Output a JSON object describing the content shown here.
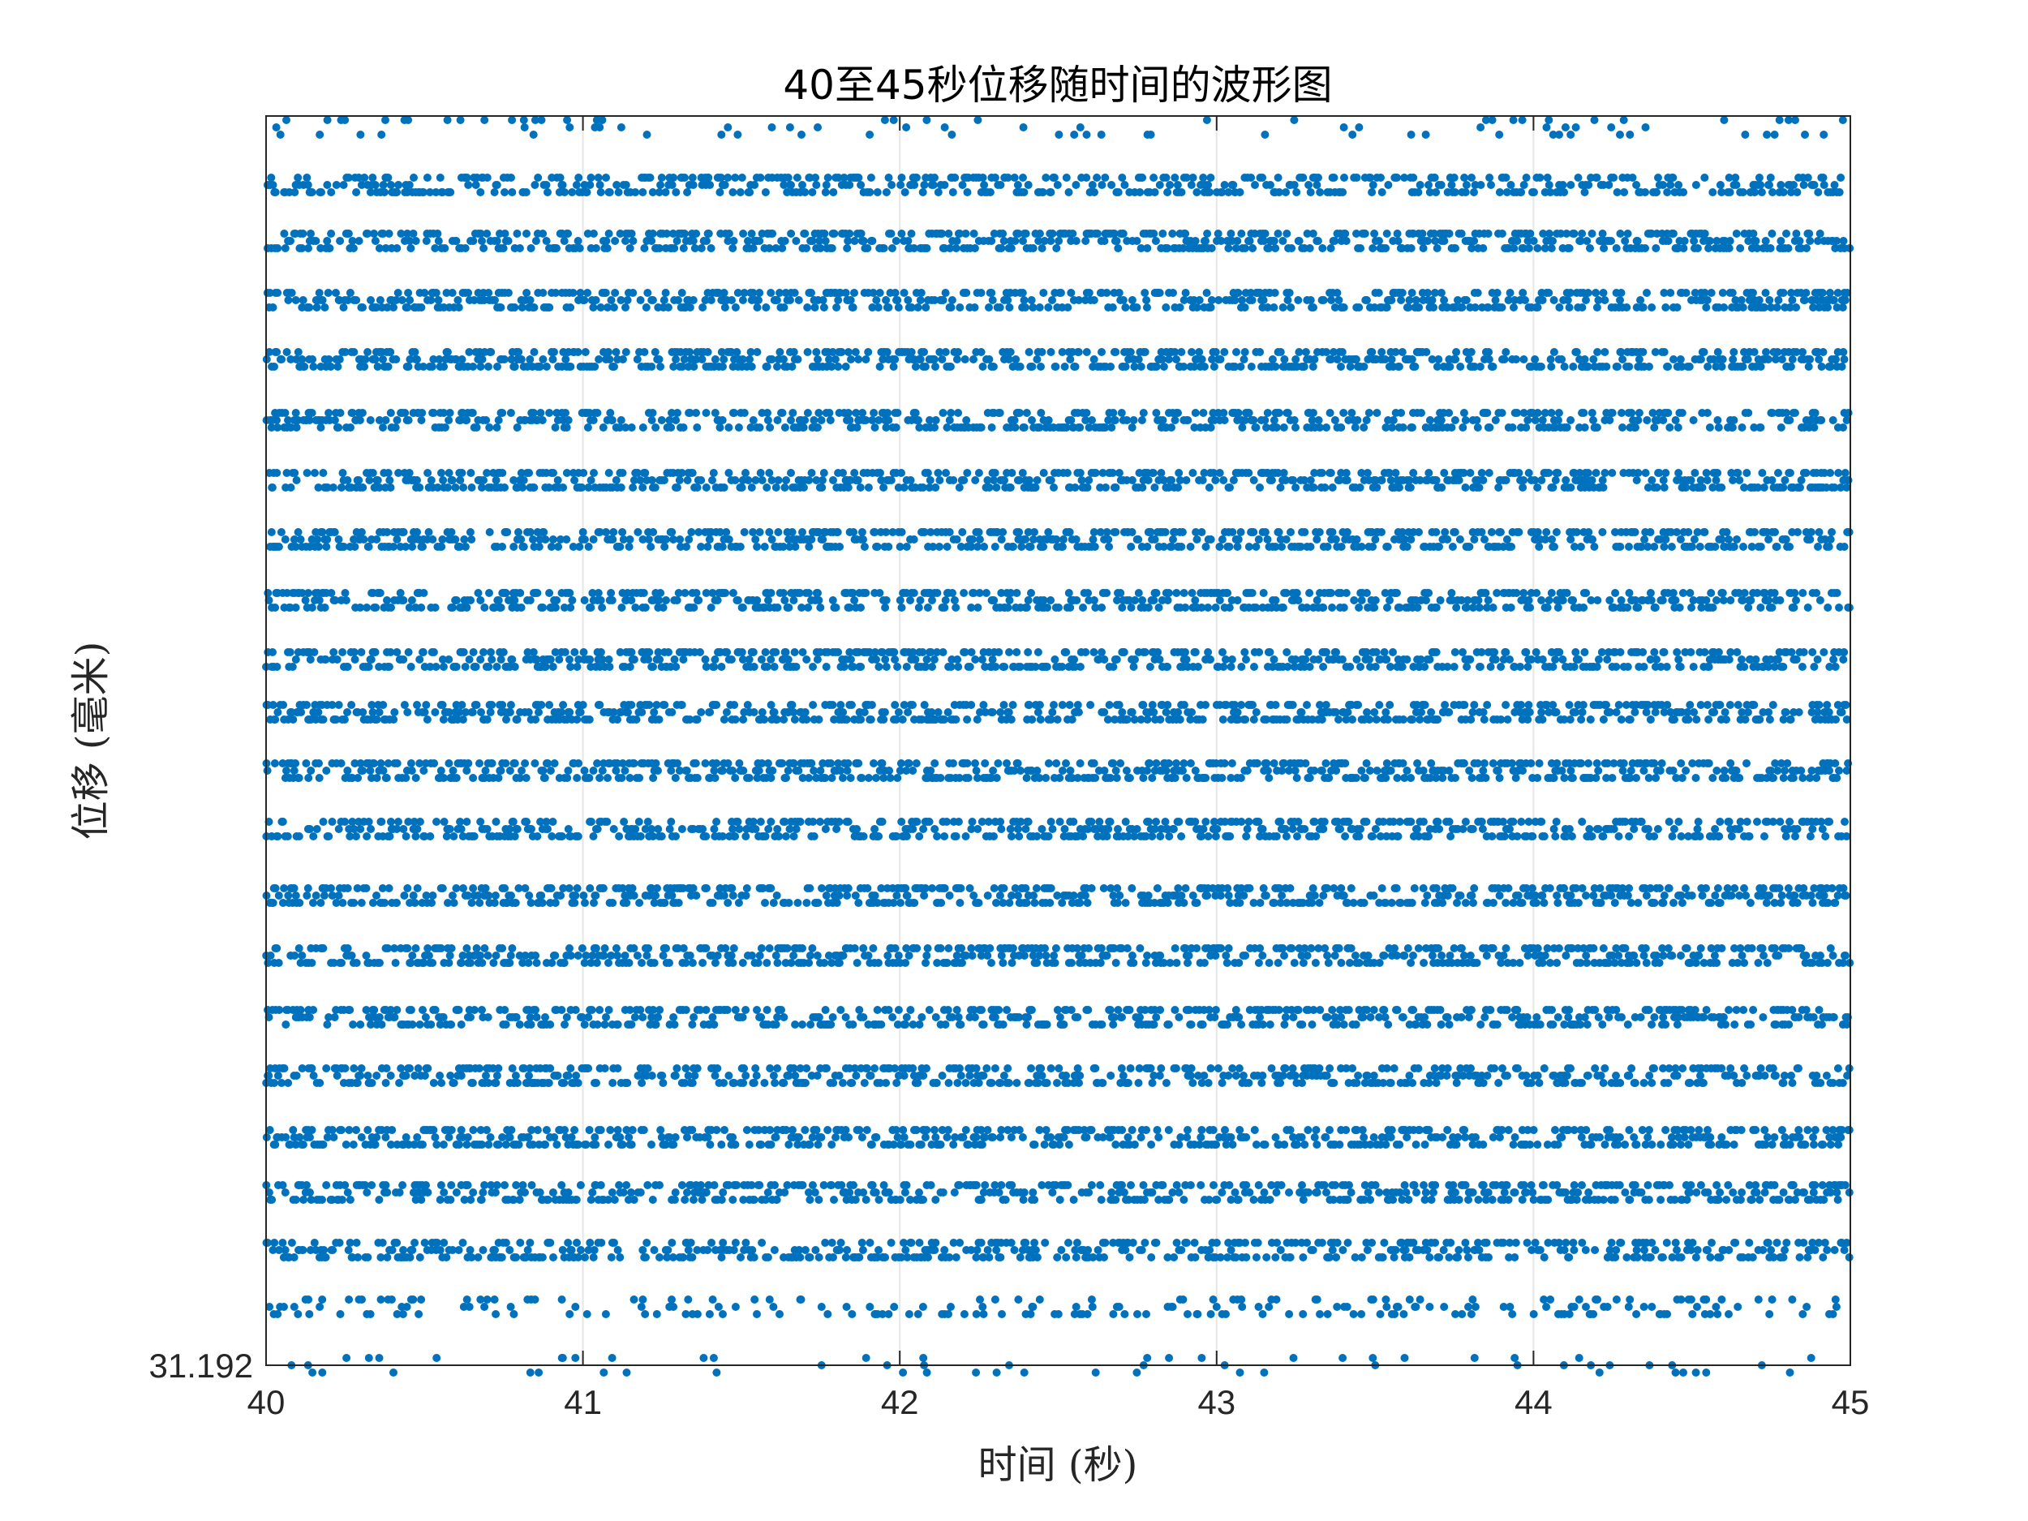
{
  "chart_data": {
    "type": "scatter",
    "title": "40至45秒位移随时间的波形图",
    "xlabel": "时间 (秒)",
    "ylabel": "位移 (毫米)",
    "xlim": [
      40,
      45
    ],
    "x_ticks": [
      "40",
      "41",
      "42",
      "43",
      "44",
      "45"
    ],
    "y_ticks": [
      "31.192"
    ],
    "grid": "vertical",
    "marker_color": "#0072BD",
    "series": [
      {
        "values": "approx. 3400 discrete displacement samples between 40 s and 45 s, quantized to 22 displacement levels (horizontal rows of dots) from 31.192 mm at the bottom up to the top of the plot; exact numeric values of the upper levels are not labeled"
      }
    ]
  }
}
